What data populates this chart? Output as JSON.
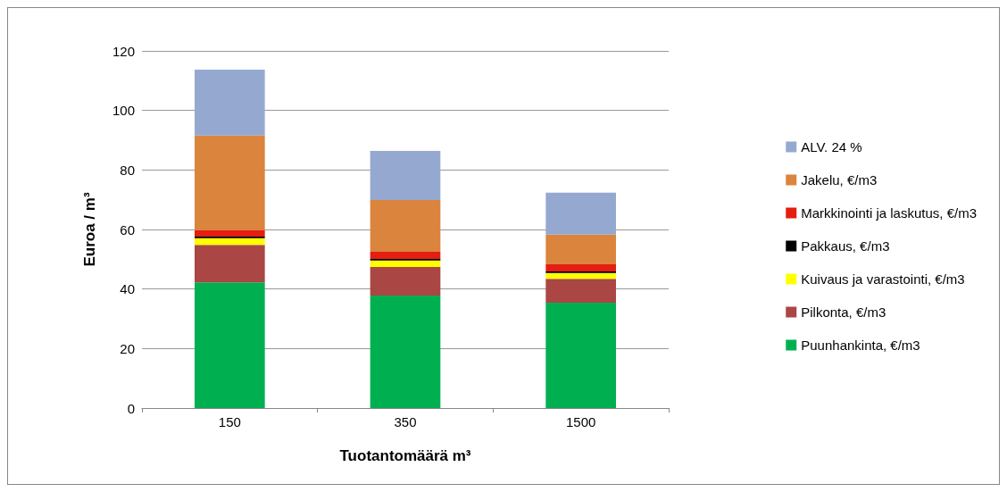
{
  "chart_data": {
    "type": "bar",
    "stacked": true,
    "xlabel": "Tuotantomäärä m³",
    "ylabel": "Euroa / m³",
    "categories": [
      "150",
      "350",
      "1500"
    ],
    "ylim": [
      0,
      120
    ],
    "yticks": [
      0,
      20,
      40,
      60,
      80,
      100,
      120
    ],
    "grid": "y",
    "legend": "right",
    "series": [
      {
        "name": "Puunhankinta, €/m3",
        "color": "#00b050",
        "values": [
          42.2,
          37.8,
          35.4
        ]
      },
      {
        "name": "Pilkonta, €/m3",
        "color": "#aa4643",
        "values": [
          12.6,
          9.6,
          8.0
        ]
      },
      {
        "name": "Kuivaus ja varastointi, €/m3",
        "color": "#ffff00",
        "values": [
          2.3,
          2.2,
          2.0
        ]
      },
      {
        "name": "Pakkaus, €/m3",
        "color": "#000000",
        "values": [
          0.5,
          0.5,
          0.5
        ]
      },
      {
        "name": "Markkinointi ja laskutus, €/m3",
        "color": "#e41e10",
        "values": [
          2.1,
          2.4,
          2.4
        ]
      },
      {
        "name": "Jakelu, €/m3",
        "color": "#db843d",
        "values": [
          31.9,
          17.4,
          10.0
        ]
      },
      {
        "name": "ALV. 24 %",
        "color": "#95a9d0",
        "values": [
          22.1,
          16.5,
          14.1
        ]
      }
    ]
  }
}
